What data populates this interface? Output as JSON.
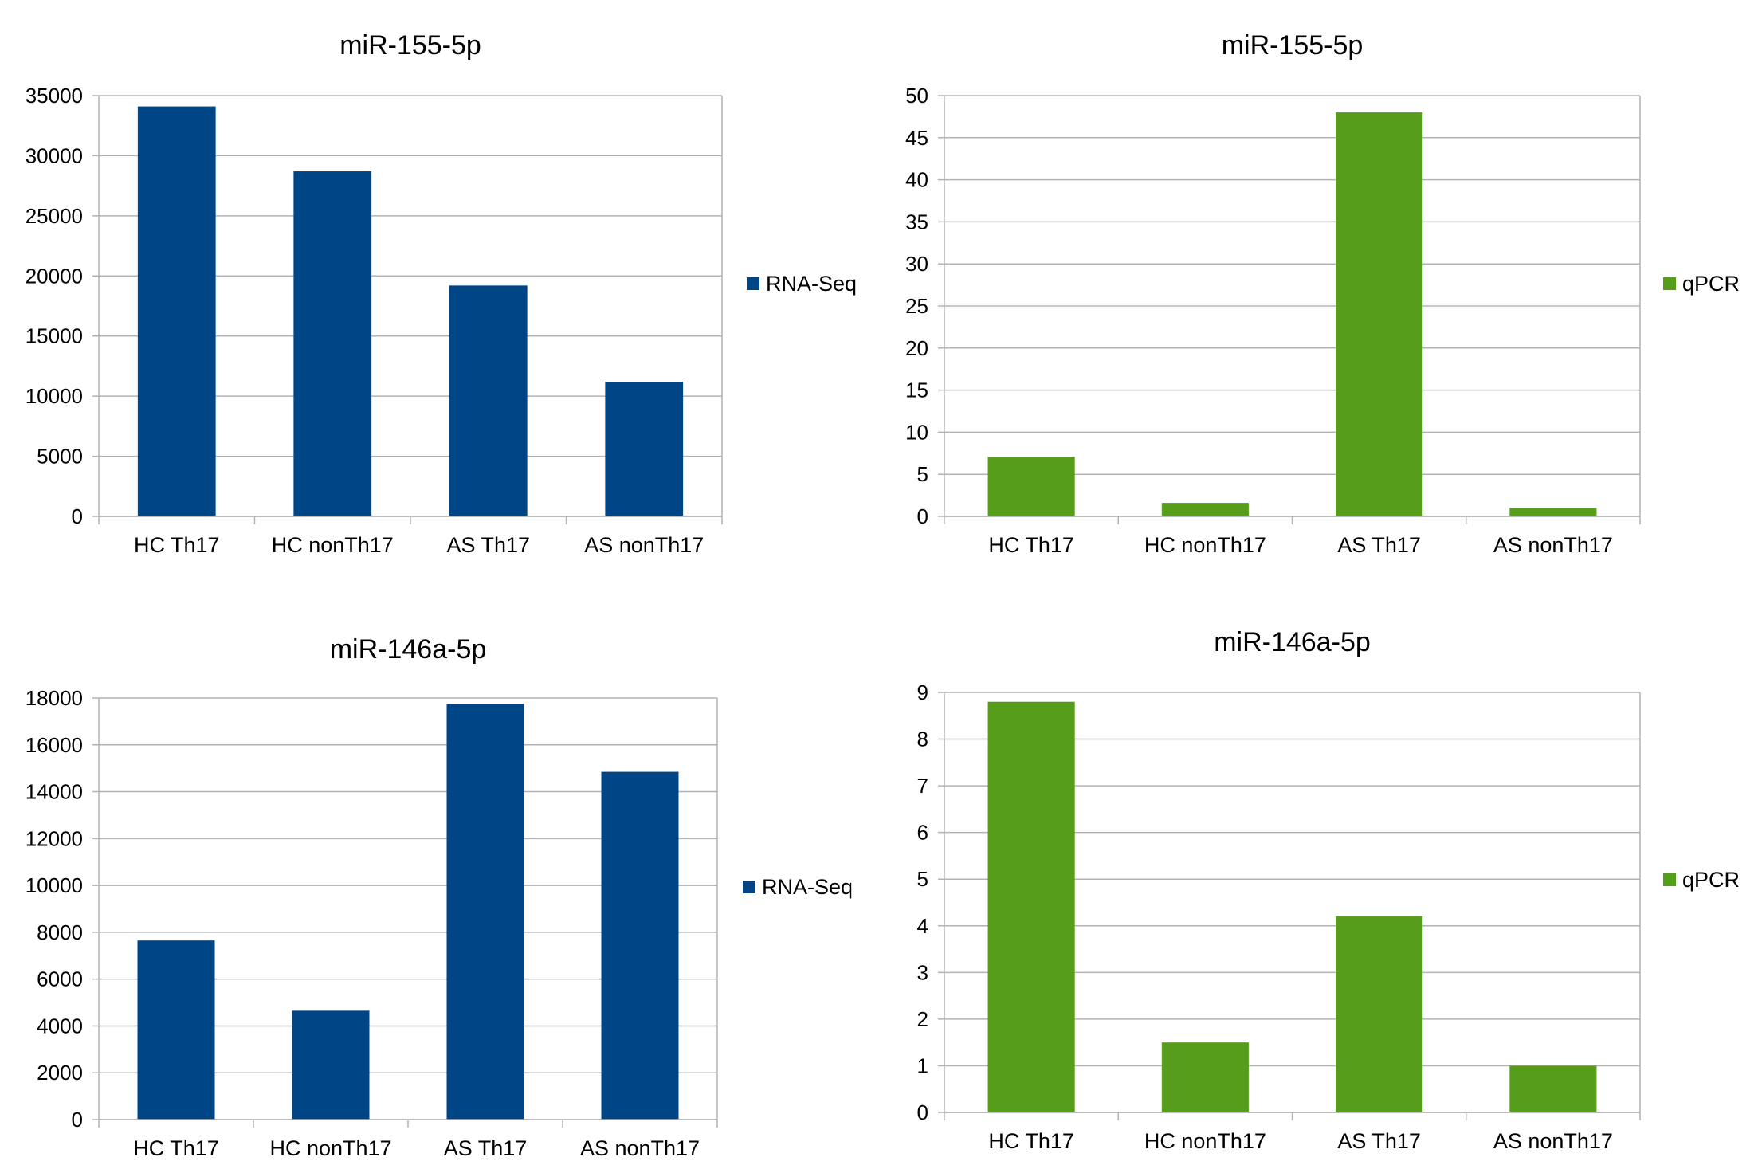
{
  "chart_data": [
    {
      "type": "bar",
      "title": "miR-155-5p",
      "categories": [
        "HC Th17",
        "HC nonTh17",
        "AS Th17",
        "AS nonTh17"
      ],
      "series": [
        {
          "name": "RNA-Seq",
          "values": [
            34100,
            28700,
            19200,
            11200
          ]
        }
      ],
      "ylim": [
        0,
        35000
      ],
      "yticks": [
        "0",
        "5000",
        "10000",
        "15000",
        "20000",
        "25000",
        "30000",
        "35000"
      ],
      "grid": true,
      "legend": "right",
      "color": "#004586"
    },
    {
      "type": "bar",
      "title": "miR-155-5p",
      "categories": [
        "HC Th17",
        "HC nonTh17",
        "AS Th17",
        "AS nonTh17"
      ],
      "series": [
        {
          "name": "qPCR",
          "values": [
            7.1,
            1.6,
            48,
            1
          ]
        }
      ],
      "ylim": [
        0,
        50
      ],
      "yticks": [
        "0",
        "5",
        "10",
        "15",
        "20",
        "25",
        "30",
        "35",
        "40",
        "45",
        "50"
      ],
      "grid": true,
      "legend": "right",
      "color": "#579d1c"
    },
    {
      "type": "bar",
      "title": "miR-146a-5p",
      "categories": [
        "HC Th17",
        "HC nonTh17",
        "AS Th17",
        "AS nonTh17"
      ],
      "series": [
        {
          "name": "RNA-Seq",
          "values": [
            7650,
            4650,
            17750,
            14850
          ]
        }
      ],
      "ylim": [
        0,
        18000
      ],
      "yticks": [
        "0",
        "2000",
        "4000",
        "6000",
        "8000",
        "10000",
        "12000",
        "14000",
        "16000",
        "18000"
      ],
      "grid": true,
      "legend": "right",
      "color": "#004586"
    },
    {
      "type": "bar",
      "title": "miR-146a-5p",
      "categories": [
        "HC Th17",
        "HC nonTh17",
        "AS Th17",
        "AS nonTh17"
      ],
      "series": [
        {
          "name": "qPCR",
          "values": [
            8.8,
            1.5,
            4.2,
            1
          ]
        }
      ],
      "ylim": [
        0,
        9
      ],
      "yticks": [
        "0",
        "1",
        "2",
        "3",
        "4",
        "5",
        "6",
        "7",
        "8",
        "9"
      ],
      "grid": true,
      "legend": "right",
      "color": "#579d1c"
    }
  ]
}
